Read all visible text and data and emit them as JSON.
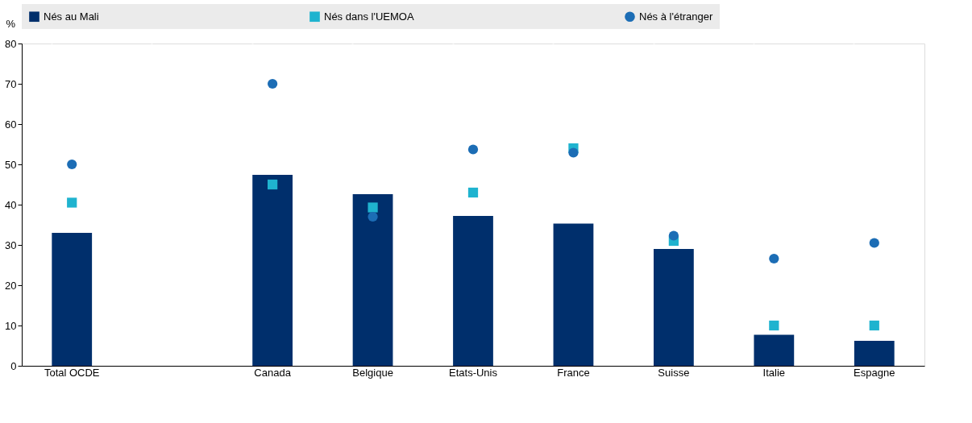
{
  "chart_data": {
    "type": "bar",
    "ylabel": "%",
    "categories": [
      "Total OCDE",
      null,
      "Canada",
      "Belgique",
      "Etats-Unis",
      "France",
      "Suisse",
      "Italie",
      "Espagne"
    ],
    "series": [
      {
        "name": "Nés au Mali",
        "color": "#002f6c",
        "values": [
          33,
          null,
          47.4,
          42.6,
          37.2,
          35.3,
          29,
          7.7,
          6.2
        ]
      },
      {
        "name": "Nés dans l'UEMOA",
        "type": "scatter",
        "marker": "square",
        "color": "#1fb3cf",
        "values": [
          40.5,
          null,
          45,
          39.3,
          43,
          54,
          31,
          10,
          10
        ]
      },
      {
        "name": "Nés à l'étranger",
        "type": "scatter",
        "marker": "circle",
        "color": "#1c6db5",
        "values": [
          50,
          null,
          70,
          37,
          53.7,
          52.9,
          32.3,
          26.6,
          30.5
        ]
      }
    ],
    "ylim": [
      0,
      80
    ],
    "yticks": [
      0,
      10,
      20,
      30,
      40,
      50,
      60,
      70,
      80
    ],
    "grid": "x",
    "legend": "top"
  }
}
